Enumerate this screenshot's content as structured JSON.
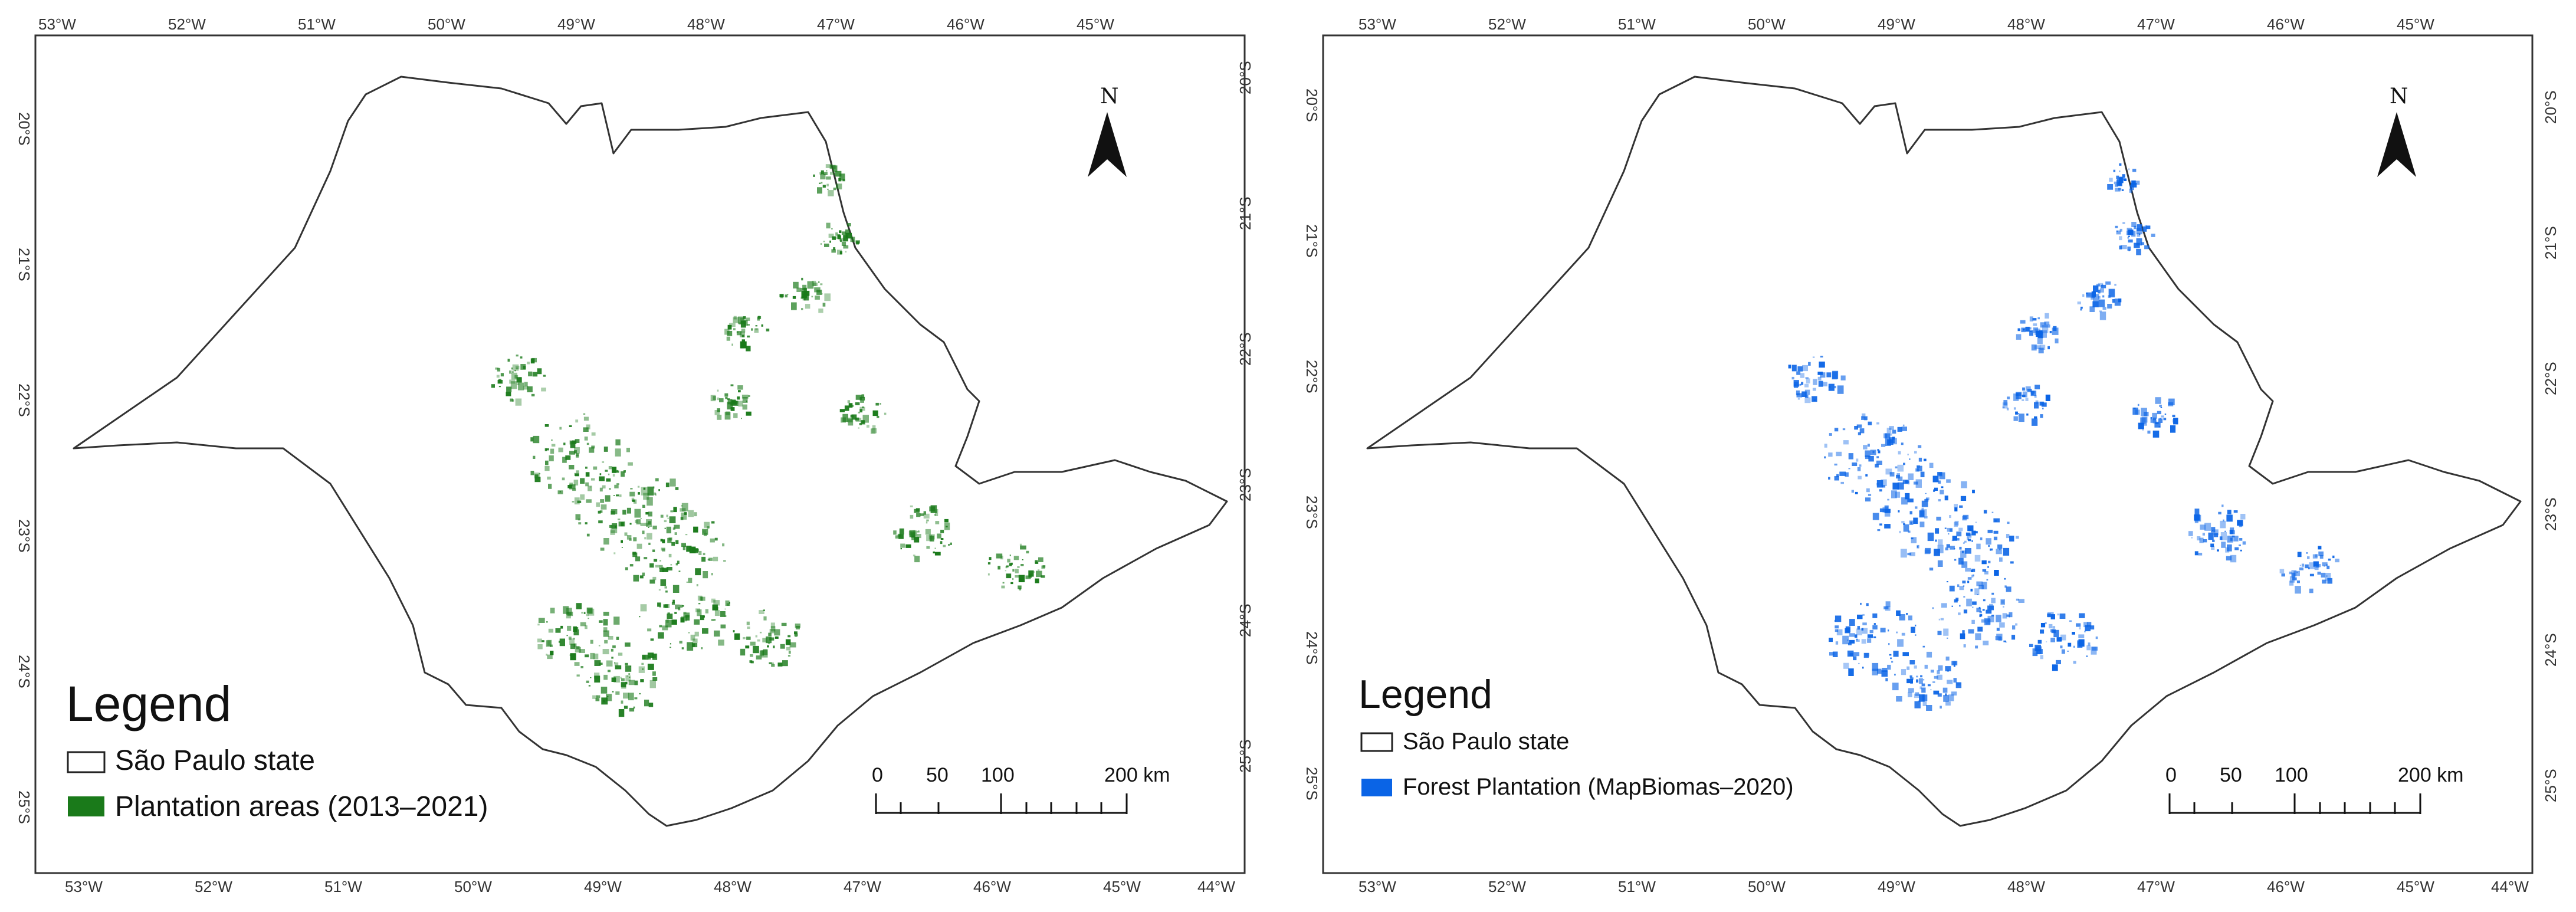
{
  "maps": [
    {
      "id": "left",
      "legend_title": "Legend",
      "legend_items": [
        {
          "label": "São Paulo state",
          "symbol": "outline"
        },
        {
          "label": "Plantation areas (2013–2021)",
          "symbol": "fill"
        }
      ],
      "plantation_color": "#1a7a1a",
      "scale_labels": [
        "0",
        "50",
        "100",
        "200 km"
      ]
    },
    {
      "id": "right",
      "legend_title": "Legend",
      "legend_items": [
        {
          "label": "São Paulo state",
          "symbol": "outline"
        },
        {
          "label": "Forest Plantation (MapBiomas–2020)",
          "symbol": "fill"
        }
      ],
      "plantation_color": "#0a64e6",
      "scale_labels": [
        "0",
        "50",
        "100",
        "200 km"
      ]
    }
  ],
  "north_label": "N",
  "top_ticks": [
    "53°W",
    "52°W",
    "51°W",
    "50°W",
    "49°W",
    "48°W",
    "47°W",
    "46°W",
    "45°W"
  ],
  "bottom_ticks": [
    "53°W",
    "52°W",
    "51°W",
    "50°W",
    "49°W",
    "48°W",
    "47°W",
    "46°W",
    "45°W",
    "44°W"
  ],
  "right_ticks": [
    "20°S",
    "21°S",
    "22°S",
    "23°S",
    "24°S",
    "25°S"
  ],
  "left_ticks": [
    "20°S",
    "21°S",
    "22°S",
    "23°S",
    "24°S",
    "25°S"
  ]
}
